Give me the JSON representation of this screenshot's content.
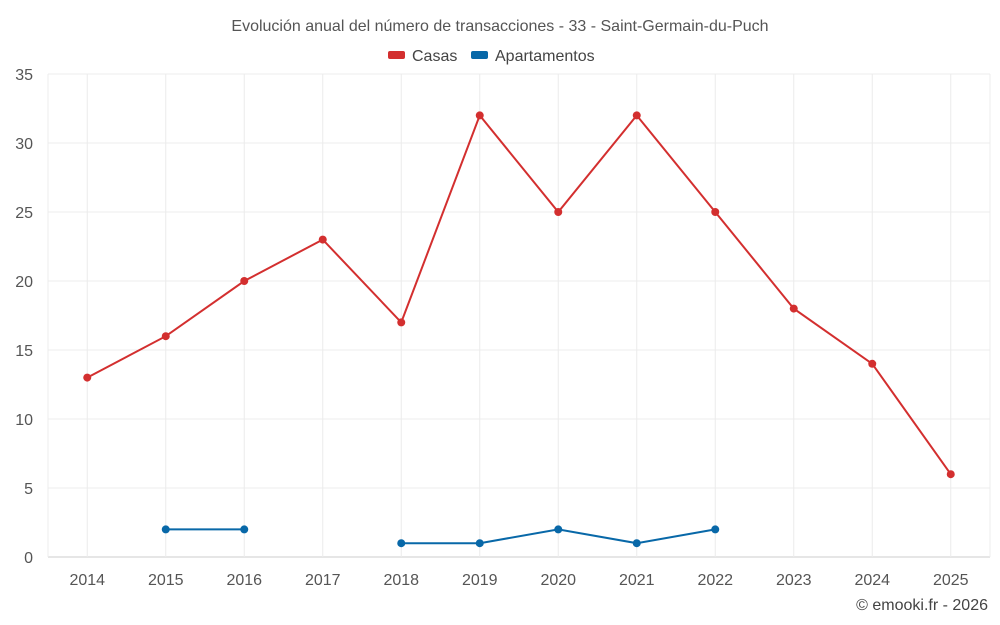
{
  "chart_data": {
    "type": "line",
    "title": "Evolución anual del número de transacciones - 33 - Saint-Germain-du-Puch",
    "categories": [
      "2014",
      "2015",
      "2016",
      "2017",
      "2018",
      "2019",
      "2020",
      "2021",
      "2022",
      "2023",
      "2024",
      "2025"
    ],
    "ylim": [
      0,
      35
    ],
    "yticks": [
      0,
      5,
      10,
      15,
      20,
      25,
      30,
      35
    ],
    "grid": true,
    "legend_position": "top-center",
    "series": [
      {
        "name": "Casas",
        "color": "#d32f2f",
        "values": [
          13,
          16,
          20,
          23,
          17,
          32,
          25,
          32,
          25,
          18,
          14,
          6
        ]
      },
      {
        "name": "Apartamentos",
        "color": "#0868a8",
        "values": [
          null,
          2,
          2,
          null,
          1,
          1,
          2,
          1,
          2,
          null,
          null,
          null
        ]
      }
    ]
  },
  "credit": "© emooki.fr - 2026"
}
